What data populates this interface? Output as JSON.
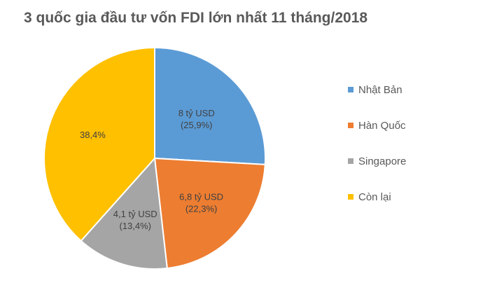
{
  "chart_data": {
    "type": "pie",
    "title": "3 quốc gia đầu tư vốn FDI lớn nhất 11 tháng/2018",
    "categories": [
      "Nhật Bản",
      "Hàn Quốc",
      "Singapore",
      "Còn lại"
    ],
    "values": [
      25.9,
      22.3,
      13.4,
      38.4
    ],
    "value_labels": [
      [
        "8 tỷ USD",
        "(25,9%)"
      ],
      [
        "6,8 tỷ USD",
        "(22,3%)"
      ],
      [
        "4,1 tỷ USD",
        "(13,4%)"
      ],
      [
        "38,4%"
      ]
    ],
    "colors": [
      "#5b9bd5",
      "#ed7d31",
      "#a5a5a5",
      "#ffc000"
    ],
    "legend_position": "right",
    "start_angle": "top",
    "direction": "clockwise"
  }
}
